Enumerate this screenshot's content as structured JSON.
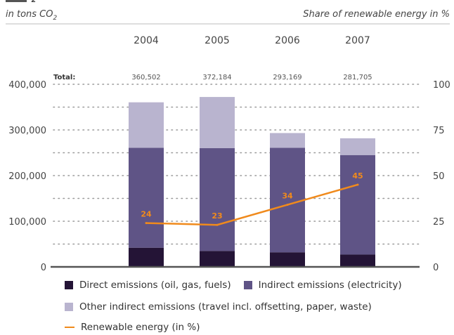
{
  "chart_data": {
    "type": "bar",
    "stacked": true,
    "unit_left": "in tons CO",
    "unit_left_subscript": "2",
    "unit_right": "Share of renewable energy in %",
    "categories": [
      "2004",
      "2005",
      "2006",
      "2007"
    ],
    "totals_label": "Total:",
    "totals": [
      "360,502",
      "372,184",
      "293,169",
      "281,705"
    ],
    "ylim_left": [
      0,
      400000
    ],
    "yticks_left": [
      "0",
      "100,000",
      "200,000",
      "300,000",
      "400,000"
    ],
    "ylim_right": [
      0,
      100
    ],
    "yticks_right": [
      "0",
      "25",
      "50",
      "75",
      "100"
    ],
    "grid": "dotted",
    "series": [
      {
        "name": "Direct emissions (oil, gas, fuels)",
        "color": "#241436",
        "values": [
          42000,
          35000,
          32000,
          27000
        ]
      },
      {
        "name": "Indirect emissions (electricity)",
        "color": "#5f5486",
        "values": [
          219000,
          225000,
          229000,
          218000
        ]
      },
      {
        "name": "Other indirect emissions (travel incl. offsetting, paper, waste)",
        "color": "#b9b4cf",
        "values": [
          99502,
          112184,
          32169,
          36705
        ]
      }
    ],
    "line_series": {
      "name": "Renewable energy (in %)",
      "color": "#f08a1c",
      "axis": "right",
      "values": [
        24,
        23,
        34,
        45
      ],
      "labels": [
        "24",
        "23",
        "34",
        "45"
      ]
    },
    "legend_position": "bottom"
  }
}
